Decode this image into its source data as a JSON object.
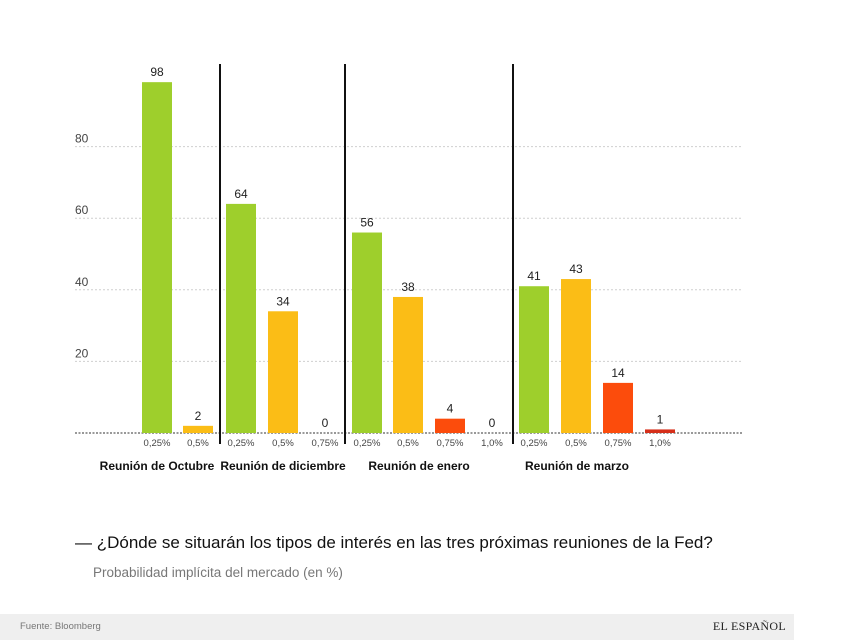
{
  "chart_data": {
    "type": "bar",
    "title": "¿Dónde se situarán los tipos de interés en las tres próximas reuniones de la Fed?",
    "subtitle": "Probabilidad implícita del mercado (en %)",
    "ylim": [
      0,
      100
    ],
    "yticks": [
      20,
      40,
      60,
      80
    ],
    "groups": [
      {
        "name": "Reunión de Octubre",
        "bars": [
          {
            "category": "0,25%",
            "value": 98,
            "label": "98"
          },
          {
            "category": "0,5%",
            "value": 2,
            "label": "2"
          }
        ]
      },
      {
        "name": "Reunión de diciembre",
        "bars": [
          {
            "category": "0,25%",
            "value": 64,
            "label": "64"
          },
          {
            "category": "0,5%",
            "value": 34,
            "label": "34"
          },
          {
            "category": "0,75%",
            "value": 0,
            "label": "0"
          }
        ]
      },
      {
        "name": "Reunión de enero",
        "bars": [
          {
            "category": "0,25%",
            "value": 56,
            "label": "56"
          },
          {
            "category": "0,5%",
            "value": 38,
            "label": "38"
          },
          {
            "category": "0,75%",
            "value": 4,
            "label": "4"
          },
          {
            "category": "1,0%",
            "value": 0,
            "label": "0"
          }
        ]
      },
      {
        "name": "Reunión de marzo",
        "bars": [
          {
            "category": "0,25%",
            "value": 41,
            "label": "41"
          },
          {
            "category": "0,5%",
            "value": 43,
            "label": "43"
          },
          {
            "category": "0,75%",
            "value": 14,
            "label": "14"
          },
          {
            "category": "1,0%",
            "value": 1,
            "label": "1"
          }
        ]
      }
    ],
    "colors": {
      "0,25%": "#9ecf2c",
      "0,5%": "#fbbd16",
      "0,75%": "#fc4c0c",
      "1,0%": "#d62f1a"
    }
  },
  "header": {
    "title": "— ¿Dónde se situarán los tipos de interés en las tres próximas reuniones de la Fed?",
    "subtitle": "Probabilidad implícita del mercado (en %)"
  },
  "footer": {
    "source": "Fuente: Bloomberg",
    "brand": "EL ESPAÑOL"
  }
}
